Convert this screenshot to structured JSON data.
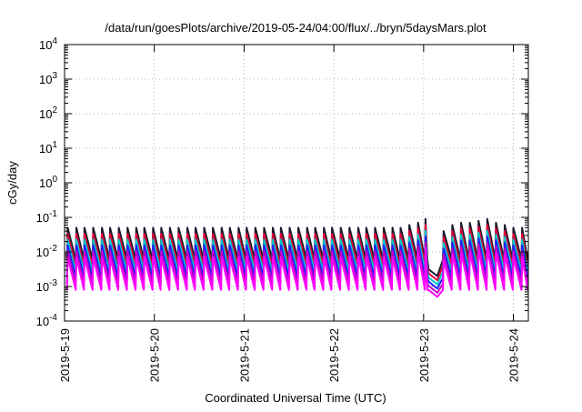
{
  "chart_data": {
    "type": "line",
    "title": "/data/run/goesPlots/archive/2019-05-24/04:00/flux/../bryn/5daysMars.plot",
    "xlabel": "Coordinated Universal Time (UTC)",
    "ylabel": "cGy/day",
    "y_scale": "log",
    "ylim": [
      0.0001,
      10000
    ],
    "xlim": [
      "2019-05-19 00:00",
      "2019-05-24 04:00"
    ],
    "grid": true,
    "legend": "none",
    "y_ticks": [
      {
        "value": 0.0001,
        "base": "10",
        "exp": "-4"
      },
      {
        "value": 0.001,
        "base": "10",
        "exp": "-3"
      },
      {
        "value": 0.01,
        "base": "10",
        "exp": "-2"
      },
      {
        "value": 0.1,
        "base": "10",
        "exp": "-1"
      },
      {
        "value": 1,
        "base": "10",
        "exp": "0"
      },
      {
        "value": 10,
        "base": "10",
        "exp": "1"
      },
      {
        "value": 100,
        "base": "10",
        "exp": "2"
      },
      {
        "value": 1000,
        "base": "10",
        "exp": "3"
      },
      {
        "value": 10000,
        "base": "10",
        "exp": "4"
      }
    ],
    "x_ticks": [
      {
        "value": "2019-05-19 00:00",
        "label": "2019-5-19"
      },
      {
        "value": "2019-05-20 00:00",
        "label": "2019-5-20"
      },
      {
        "value": "2019-05-21 00:00",
        "label": "2019-5-21"
      },
      {
        "value": "2019-05-22 00:00",
        "label": "2019-5-22"
      },
      {
        "value": "2019-05-23 00:00",
        "label": "2019-5-23"
      },
      {
        "value": "2019-05-24 00:00",
        "label": "2019-5-24"
      }
    ],
    "series_colors": [
      "#1a1a2e",
      "#e0003a",
      "#00c8c8",
      "#2020ff",
      "#c000c0",
      "#ff00ff"
    ],
    "sawtooth_peaks": [
      "2019-05-19 00:50",
      "2019-05-19 03:10",
      "2019-05-19 05:20",
      "2019-05-19 07:40",
      "2019-05-19 10:00",
      "2019-05-19 12:10",
      "2019-05-19 14:30",
      "2019-05-19 16:50",
      "2019-05-19 19:10",
      "2019-05-19 21:20",
      "2019-05-19 23:40",
      "2019-05-20 01:50",
      "2019-05-20 04:10",
      "2019-05-20 06:30",
      "2019-05-20 08:50",
      "2019-05-20 11:00",
      "2019-05-20 13:20",
      "2019-05-20 15:40",
      "2019-05-20 18:00",
      "2019-05-20 20:10",
      "2019-05-20 22:30",
      "2019-05-21 00:40",
      "2019-05-21 03:00",
      "2019-05-21 05:20",
      "2019-05-21 07:40",
      "2019-05-21 09:50",
      "2019-05-21 12:10",
      "2019-05-21 14:30",
      "2019-05-21 16:50",
      "2019-05-21 19:00",
      "2019-05-21 21:20",
      "2019-05-21 23:30",
      "2019-05-22 01:50",
      "2019-05-22 04:10",
      "2019-05-22 06:30",
      "2019-05-22 08:40",
      "2019-05-22 11:00",
      "2019-05-22 13:20",
      "2019-05-22 15:40",
      "2019-05-22 17:50",
      "2019-05-22 20:10",
      "2019-05-22 22:30",
      "2019-05-23 00:30",
      "2019-05-23 05:20",
      "2019-05-23 07:40",
      "2019-05-23 10:00",
      "2019-05-23 12:20",
      "2019-05-23 14:40",
      "2019-05-23 17:00",
      "2019-05-23 19:20",
      "2019-05-23 21:40",
      "2019-05-24 00:00",
      "2019-05-24 02:20"
    ],
    "peak_values": [
      0.05,
      0.05,
      0.05,
      0.05,
      0.05,
      0.05,
      0.05,
      0.05,
      0.05,
      0.05,
      0.05,
      0.05,
      0.05,
      0.05,
      0.05,
      0.05,
      0.05,
      0.05,
      0.05,
      0.05,
      0.05,
      0.05,
      0.05,
      0.05,
      0.05,
      0.05,
      0.05,
      0.05,
      0.05,
      0.05,
      0.05,
      0.05,
      0.05,
      0.05,
      0.05,
      0.05,
      0.05,
      0.05,
      0.05,
      0.05,
      0.06,
      0.07,
      0.09,
      0.04,
      0.06,
      0.07,
      0.07,
      0.08,
      0.09,
      0.07,
      0.06,
      0.05,
      0.05
    ],
    "trough_top": 0.006,
    "trough_bottom": 0.0008,
    "dip_window": [
      "2019-05-23 01:00",
      "2019-05-23 03:40"
    ],
    "dip_trough_top": 0.002,
    "dip_trough_bottom": 0.0005
  }
}
